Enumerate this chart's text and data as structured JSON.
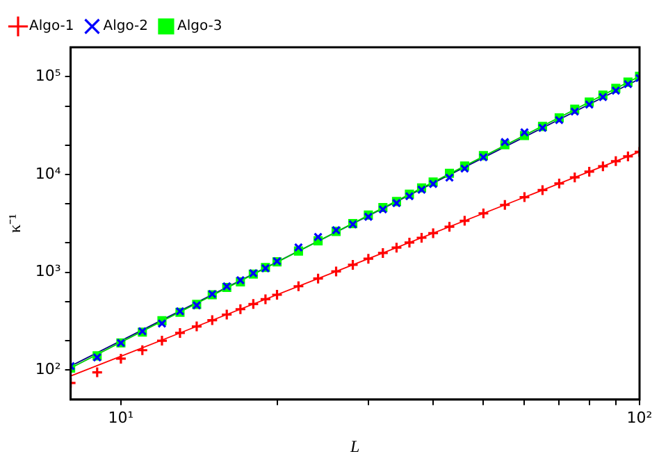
{
  "chart_data": {
    "type": "scatter",
    "xlabel": "L",
    "ylabel": "κ⁻¹",
    "log": "xy",
    "grid": false,
    "legend": "top left",
    "xlim": [
      8,
      100
    ],
    "ylim": [
      50,
      200000
    ],
    "xticks": [
      {
        "value": 10,
        "label": "10¹"
      },
      {
        "value": 20,
        "label": null
      },
      {
        "value": 30,
        "label": null
      },
      {
        "value": 40,
        "label": null
      },
      {
        "value": 50,
        "label": null
      },
      {
        "value": 60,
        "label": null
      },
      {
        "value": 70,
        "label": null
      },
      {
        "value": 80,
        "label": null
      },
      {
        "value": 90,
        "label": null
      },
      {
        "value": 100,
        "label": "10²"
      }
    ],
    "yticks": [
      {
        "value": 100,
        "label": "10²"
      },
      {
        "value": 200,
        "label": null
      },
      {
        "value": 500,
        "label": null
      },
      {
        "value": 1000,
        "label": "10³"
      },
      {
        "value": 2000,
        "label": null
      },
      {
        "value": 5000,
        "label": null
      },
      {
        "value": 10000,
        "label": "10⁴"
      },
      {
        "value": 20000,
        "label": null
      },
      {
        "value": 50000,
        "label": null
      },
      {
        "value": 100000,
        "label": "10⁵"
      }
    ],
    "series": [
      {
        "name": "Algo-1",
        "marker": "cross",
        "color": "#ff0000",
        "x": [
          8,
          9,
          10,
          11,
          12,
          13,
          14,
          15,
          16,
          17,
          18,
          19,
          20,
          22,
          24,
          26,
          28,
          30,
          32,
          34,
          36,
          38,
          40,
          43,
          46,
          50,
          55,
          60,
          65,
          70,
          75,
          80,
          85,
          90,
          95,
          100
        ],
        "values": [
          74,
          95,
          131,
          160,
          200,
          240,
          280,
          324,
          370,
          420,
          474,
          531,
          590,
          721,
          864,
          1022,
          1193,
          1378,
          1577,
          1790,
          2017,
          2258,
          2515,
          2924,
          3368,
          4009,
          4892,
          5869,
          6934,
          8097,
          9354,
          10700,
          12150,
          13690,
          15330,
          17060
        ]
      },
      {
        "name": "Algo-2",
        "marker": "x",
        "color": "#0000ff",
        "x": [
          8,
          9,
          10,
          11,
          12,
          13,
          14,
          15,
          16,
          17,
          18,
          19,
          20,
          22,
          24,
          26,
          28,
          30,
          32,
          34,
          36,
          38,
          40,
          43,
          46,
          50,
          55,
          60,
          65,
          70,
          75,
          80,
          85,
          90,
          95,
          100
        ],
        "values": [
          110,
          135,
          190,
          250,
          300,
          400,
          460,
          600,
          720,
          830,
          980,
          1100,
          1300,
          1800,
          2300,
          2700,
          3100,
          3700,
          4400,
          5100,
          6000,
          7000,
          8000,
          9300,
          11500,
          15000,
          21500,
          27000,
          30000,
          36000,
          44000,
          52000,
          62000,
          72000,
          84000,
          97000
        ]
      },
      {
        "name": "Algo-3",
        "marker": "square",
        "color": "#00ff00",
        "x": [
          8,
          9,
          10,
          11,
          12,
          13,
          14,
          15,
          16,
          17,
          18,
          19,
          20,
          22,
          24,
          26,
          28,
          30,
          32,
          34,
          36,
          38,
          40,
          43,
          46,
          50,
          55,
          60,
          65,
          70,
          75,
          80,
          85,
          90,
          95,
          100
        ],
        "values": [
          105,
          140,
          190,
          245,
          320,
          390,
          470,
          590,
          700,
          800,
          960,
          1120,
          1280,
          1650,
          2100,
          2620,
          3150,
          3850,
          4600,
          5300,
          6300,
          7300,
          8400,
          10300,
          12200,
          15600,
          20200,
          25000,
          31000,
          38000,
          46500,
          55000,
          65000,
          76000,
          88000,
          101000
        ]
      },
      {
        "type": "line",
        "marker": "none",
        "color": "#ff0000",
        "x": [
          8,
          100
        ],
        "values": [
          87,
          17060
        ]
      },
      {
        "type": "line",
        "marker": "none",
        "color": "#00cc00",
        "x": [
          8,
          100
        ],
        "values": [
          105,
          101000
        ]
      },
      {
        "type": "line",
        "marker": "none",
        "color": "#000080",
        "x": [
          8,
          100
        ],
        "values": [
          110,
          95000
        ]
      }
    ]
  }
}
